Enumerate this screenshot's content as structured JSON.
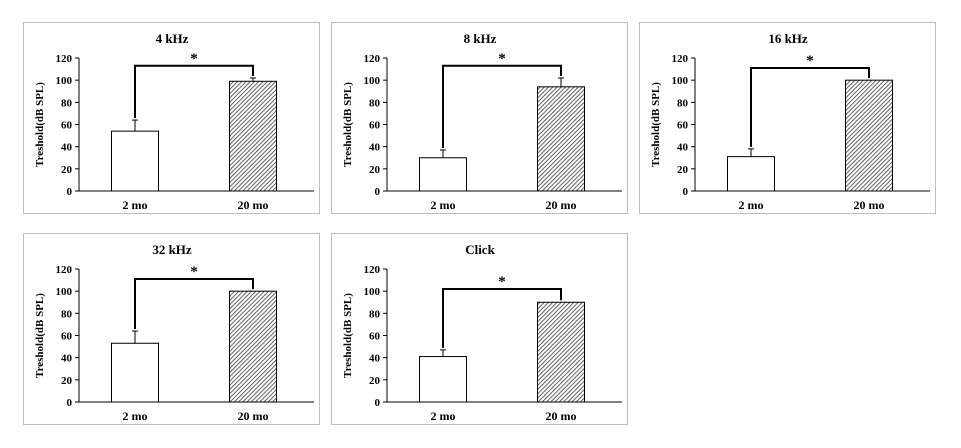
{
  "colors": {
    "bar_young": "#ffffff",
    "bar_old_hatch": "#3a3a3a",
    "axis": "#000000",
    "panel_border": "#bdbdbd"
  },
  "chart_data": [
    {
      "type": "bar",
      "title": "4 kHz",
      "categories": [
        "2 mo",
        "20 mo"
      ],
      "values": [
        54,
        99
      ],
      "errors": [
        10,
        3
      ],
      "ylabel": "Treshold(dB SPL)",
      "ylim": [
        0,
        120
      ],
      "yticks": [
        0,
        20,
        40,
        60,
        80,
        100,
        120
      ],
      "significance": "*"
    },
    {
      "type": "bar",
      "title": "8 kHz",
      "categories": [
        "2 mo",
        "20 mo"
      ],
      "values": [
        30,
        94
      ],
      "errors": [
        7,
        8
      ],
      "ylabel": "Treshold(dB SPL)",
      "ylim": [
        0,
        120
      ],
      "yticks": [
        0,
        20,
        40,
        60,
        80,
        100,
        120
      ],
      "significance": "*"
    },
    {
      "type": "bar",
      "title": "16 kHz",
      "categories": [
        "2 mo",
        "20 mo"
      ],
      "values": [
        31,
        100
      ],
      "errors": [
        7,
        0
      ],
      "ylabel": "Treshold(dB SPL)",
      "ylim": [
        0,
        120
      ],
      "yticks": [
        0,
        20,
        40,
        60,
        80,
        100,
        120
      ],
      "significance": "*"
    },
    {
      "type": "bar",
      "title": "32 kHz",
      "categories": [
        "2 mo",
        "20 mo"
      ],
      "values": [
        53,
        100
      ],
      "errors": [
        11,
        0
      ],
      "ylabel": "Treshold(dB SPL)",
      "ylim": [
        0,
        120
      ],
      "yticks": [
        0,
        20,
        40,
        60,
        80,
        100,
        120
      ],
      "significance": "*"
    },
    {
      "type": "bar",
      "title": "Click",
      "categories": [
        "2 mo",
        "20 mo"
      ],
      "values": [
        41,
        90
      ],
      "errors": [
        6,
        0
      ],
      "ylabel": "Treshold(dB SPL)",
      "ylim": [
        0,
        120
      ],
      "yticks": [
        0,
        20,
        40,
        60,
        80,
        100,
        120
      ],
      "significance": "*"
    }
  ]
}
